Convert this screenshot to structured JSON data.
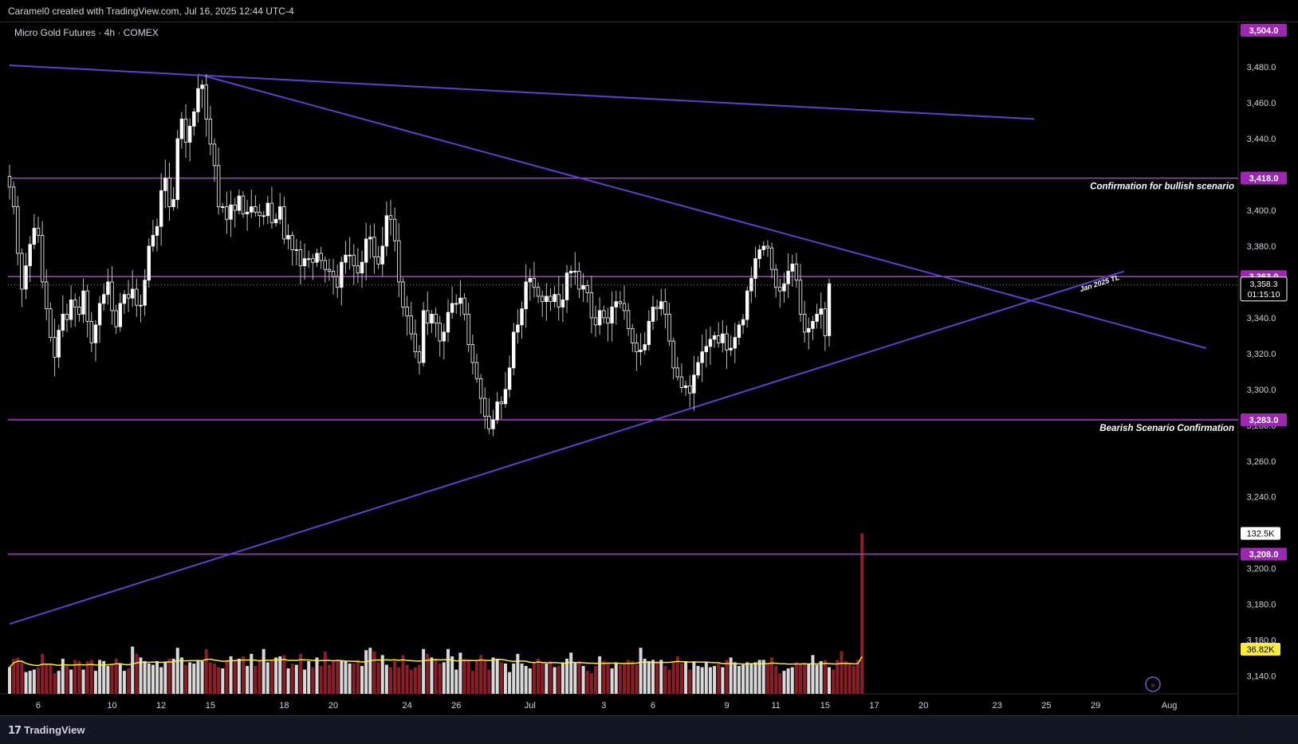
{
  "header": {
    "attribution": "Caramel0 created with TradingView.com, Jul 16, 2025 12:44 UTC-4",
    "symbol": "Micro Gold Futures · 4h · COMEX"
  },
  "footer": {
    "brand": "TradingView"
  },
  "colors": {
    "background": "#000000",
    "level_line": "#b03ad6",
    "level_badge": "#9c27b0",
    "trendline": "#5e3fd0",
    "bull_candle": "#ffffff",
    "bear_candle": "#ffffff",
    "bull_volume": "#d8d8d8",
    "bear_volume": "#8b1d26",
    "volume_ma": "#ffeb3b"
  },
  "chart_data": {
    "type": "candlestick",
    "title": "Micro Gold Futures · 4h · COMEX",
    "ylim": [
      3130,
      3505
    ],
    "y_ticks": [
      "3,480.0",
      "3,460.0",
      "3,440.0",
      "3,420.0",
      "3,400.0",
      "3,380.0",
      "3,360.0",
      "3,340.0",
      "3,320.0",
      "3,300.0",
      "3,280.0",
      "3,260.0",
      "3,240.0",
      "3,220.0",
      "3,200.0",
      "3,180.0",
      "3,160.0",
      "3,140.0"
    ],
    "x_ticks": [
      {
        "label": "6",
        "bar": 7
      },
      {
        "label": "10",
        "bar": 25
      },
      {
        "label": "12",
        "bar": 37
      },
      {
        "label": "15",
        "bar": 49
      },
      {
        "label": "18",
        "bar": 67
      },
      {
        "label": "20",
        "bar": 79
      },
      {
        "label": "24",
        "bar": 97
      },
      {
        "label": "26",
        "bar": 109
      },
      {
        "label": "Jul",
        "bar": 127
      },
      {
        "label": "3",
        "bar": 145
      },
      {
        "label": "6",
        "bar": 157
      },
      {
        "label": "9",
        "bar": 175
      },
      {
        "label": "11",
        "bar": 187
      },
      {
        "label": "15",
        "bar": 199
      },
      {
        "label": "17",
        "bar": 211
      },
      {
        "label": "20",
        "bar": 223
      },
      {
        "label": "23",
        "bar": 241
      },
      {
        "label": "25",
        "bar": 253
      },
      {
        "label": "29",
        "bar": 265
      },
      {
        "label": "Aug",
        "bar": 283
      }
    ],
    "last_price": "3,358.3",
    "countdown": "01:15:10",
    "max_label": "3,504.0",
    "levels": [
      {
        "price": 3418,
        "label": "3,418.0",
        "annotation": "Confirmation for bullish scenario"
      },
      {
        "price": 3363,
        "label": "3,363.0",
        "annotation": ""
      },
      {
        "price": 3283,
        "label": "3,283.0",
        "annotation": "Bearish Scenario Confirmation"
      },
      {
        "price": 3208,
        "label": "3,208.0",
        "annotation": ""
      }
    ],
    "trendlines": [
      {
        "name": "long-term-resistance",
        "from": {
          "bar": 0,
          "price": 3481
        },
        "to": {
          "bar": 250,
          "price": 3451
        },
        "label": ""
      },
      {
        "name": "descending-resistance",
        "from": {
          "bar": 46,
          "price": 3476
        },
        "to": {
          "bar": 292,
          "price": 3323
        },
        "label": ""
      },
      {
        "name": "jan-2025-tl",
        "from": {
          "bar": 0,
          "price": 3169
        },
        "to": {
          "bar": 272,
          "price": 3366
        },
        "label": "Jan 2025 TL"
      }
    ],
    "volume": {
      "last_value": "132.5K",
      "ma_value": "36.82K",
      "ma_length": 20
    },
    "closes": [
      3413,
      3402,
      3376,
      3356,
      3369,
      3381,
      3390,
      3386,
      3360,
      3345,
      3329,
      3318,
      3333,
      3342,
      3339,
      3350,
      3346,
      3342,
      3355,
      3338,
      3326,
      3336,
      3348,
      3353,
      3360,
      3344,
      3335,
      3348,
      3353,
      3351,
      3356,
      3347,
      3347,
      3361,
      3380,
      3386,
      3391,
      3411,
      3418,
      3402,
      3406,
      3440,
      3451,
      3438,
      3447,
      3455,
      3468,
      3470,
      3451,
      3437,
      3425,
      3402,
      3402,
      3395,
      3403,
      3400,
      3408,
      3398,
      3399,
      3402,
      3399,
      3397,
      3397,
      3404,
      3393,
      3395,
      3402,
      3384,
      3386,
      3378,
      3378,
      3369,
      3373,
      3373,
      3371,
      3376,
      3372,
      3367,
      3366,
      3363,
      3357,
      3371,
      3375,
      3375,
      3369,
      3365,
      3371,
      3384,
      3385,
      3374,
      3370,
      3380,
      3397,
      3395,
      3383,
      3360,
      3346,
      3341,
      3331,
      3321,
      3315,
      3344,
      3337,
      3342,
      3337,
      3327,
      3332,
      3343,
      3348,
      3348,
      3351,
      3342,
      3325,
      3315,
      3306,
      3295,
      3285,
      3278,
      3283,
      3293,
      3292,
      3300,
      3312,
      3332,
      3336,
      3345,
      3360,
      3362,
      3357,
      3352,
      3349,
      3352,
      3349,
      3353,
      3346,
      3350,
      3365,
      3366,
      3366,
      3356,
      3358,
      3354,
      3340,
      3336,
      3344,
      3340,
      3337,
      3346,
      3349,
      3348,
      3344,
      3334,
      3326,
      3321,
      3322,
      3325,
      3338,
      3346,
      3345,
      3349,
      3342,
      3327,
      3312,
      3307,
      3301,
      3302,
      3298,
      3308,
      3315,
      3321,
      3324,
      3328,
      3330,
      3326,
      3331,
      3322,
      3323,
      3329,
      3336,
      3339,
      3355,
      3362,
      3373,
      3378,
      3380,
      3379,
      3367,
      3357,
      3355,
      3359,
      3366,
      3370,
      3361,
      3342,
      3332,
      3334,
      3338,
      3342,
      3345,
      3330,
      3359
    ],
    "volumes": [
      22,
      29,
      30,
      27,
      18,
      19,
      20,
      22,
      33,
      25,
      25,
      17,
      19,
      29,
      24,
      20,
      28,
      27,
      20,
      27,
      28,
      19,
      28,
      27,
      23,
      25,
      29,
      25,
      19,
      21,
      39,
      33,
      30,
      27,
      25,
      24,
      27,
      22,
      26,
      29,
      29,
      38,
      30,
      24,
      26,
      25,
      28,
      27,
      37,
      26,
      25,
      22,
      21,
      28,
      31,
      28,
      29,
      31,
      23,
      33,
      23,
      28,
      37,
      26,
      28,
      30,
      31,
      32,
      21,
      25,
      24,
      33,
      20,
      27,
      22,
      30,
      23,
      35,
      24,
      27,
      28,
      27,
      27,
      25,
      25,
      28,
      23,
      36,
      38,
      35,
      26,
      32,
      24,
      22,
      27,
      22,
      32,
      24,
      20,
      22,
      24,
      37,
      33,
      30,
      29,
      25,
      26,
      37,
      31,
      20,
      34,
      29,
      28,
      19,
      27,
      32,
      27,
      20,
      30,
      29,
      26,
      25,
      18,
      25,
      33,
      25,
      23,
      21,
      26,
      29,
      26,
      25,
      27,
      22,
      23,
      26,
      29,
      34,
      26,
      27,
      23,
      19,
      17,
      23,
      31,
      27,
      26,
      21,
      26,
      24,
      25,
      28,
      27,
      24,
      38,
      29,
      27,
      28,
      27,
      28,
      23,
      20,
      26,
      31,
      25,
      26,
      20,
      26,
      23,
      22,
      26,
      22,
      23,
      25,
      22,
      28,
      30,
      26,
      23,
      24,
      26,
      25,
      26,
      28,
      28,
      25,
      30,
      23,
      17,
      19,
      21,
      22,
      26,
      25,
      25,
      25,
      32,
      24,
      27,
      28,
      22,
      20,
      28,
      35,
      27,
      25,
      23,
      28,
      132.5
    ]
  }
}
